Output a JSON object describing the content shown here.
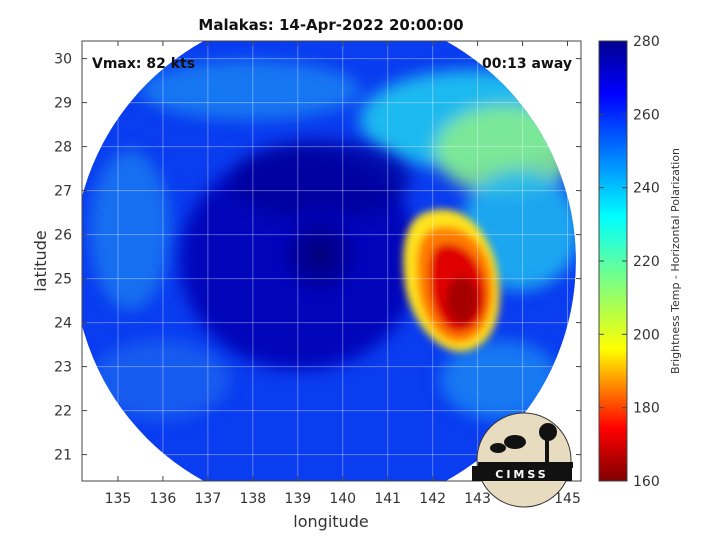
{
  "chart_data": {
    "type": "heatmap",
    "title": "Malakas: 14-Apr-2022 20:00:00",
    "xlabel": "longitude",
    "ylabel": "latitude",
    "xlim": [
      134.2,
      145.3
    ],
    "ylim": [
      20.4,
      30.4
    ],
    "xticks": [
      "135",
      "136",
      "137",
      "138",
      "139",
      "140",
      "141",
      "142",
      "143",
      "144",
      "145"
    ],
    "yticks": [
      "21",
      "22",
      "23",
      "24",
      "25",
      "26",
      "27",
      "28",
      "29",
      "30"
    ],
    "grid": true,
    "annotations": {
      "vmax": "Vmax: 82 kts",
      "time_offset": "00:13 away"
    },
    "colorbar": {
      "label": "Brightness Temp - Horizontal Polarization",
      "min": 160,
      "max": 280,
      "ticks": [
        "160",
        "180",
        "200",
        "220",
        "240",
        "260",
        "280"
      ],
      "colormap": [
        "#7f0000",
        "#ff0000",
        "#ffff00",
        "#7fff7f",
        "#00ffff",
        "#007fff",
        "#0000ff",
        "#00008f"
      ]
    },
    "swath_center": [
      139.6,
      25.4
    ],
    "swath_radius_deg": 5.7,
    "features": [
      {
        "name": "eye-core",
        "lon": 139.4,
        "lat": 25.5,
        "value": 272
      },
      {
        "name": "warm-rain-band",
        "lon": 142.4,
        "lat": 24.5,
        "value": 168
      },
      {
        "name": "outer-band-northeast",
        "lon": 142.8,
        "lat": 28.2,
        "value": 232
      }
    ],
    "logo": "CIMSS"
  }
}
